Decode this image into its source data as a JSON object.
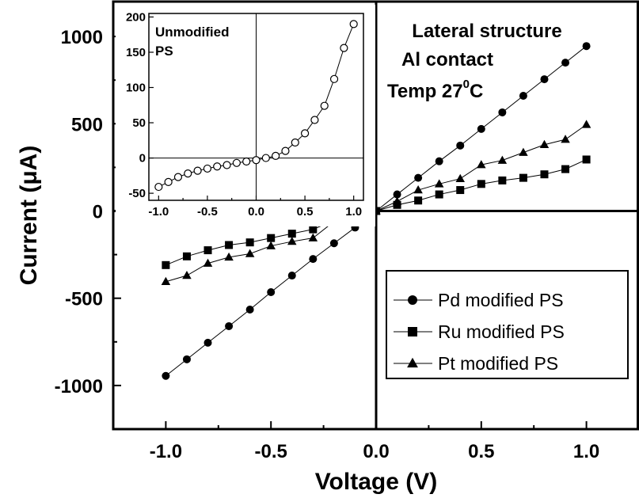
{
  "chart_data": [
    {
      "type": "line",
      "xlabel": "Voltage (V)",
      "ylabel": "Current (μA)",
      "xlim": [
        -1.25,
        1.25
      ],
      "ylim": [
        -1250,
        1200
      ],
      "x_ticks": [
        "-1.0",
        "-0.5",
        "0.0",
        "0.5",
        "1.0"
      ],
      "y_ticks": [
        "-1000",
        "-500",
        "0",
        "500",
        "1000"
      ],
      "annotations": [
        "Lateral structure",
        "Al contact",
        "Temp 27",
        "0",
        "C"
      ],
      "legend_position": "bottom-right",
      "grid": false,
      "x": [
        -1.0,
        -0.9,
        -0.8,
        -0.7,
        -0.6,
        -0.5,
        -0.4,
        -0.3,
        -0.2,
        -0.1,
        0.0,
        0.1,
        0.2,
        0.3,
        0.4,
        0.5,
        0.6,
        0.7,
        0.8,
        0.9,
        1.0
      ],
      "series": [
        {
          "name": "Pd modified PS",
          "marker": "circle",
          "values": [
            -945,
            -850,
            -755,
            -660,
            -565,
            -465,
            -370,
            -275,
            -185,
            -95,
            0,
            95,
            190,
            285,
            375,
            470,
            565,
            660,
            755,
            850,
            945
          ]
        },
        {
          "name": "Ru modified PS",
          "marker": "square",
          "values": [
            -310,
            -260,
            -225,
            -195,
            -180,
            -155,
            -130,
            -105,
            -55,
            -30,
            0,
            35,
            60,
            95,
            120,
            155,
            175,
            190,
            210,
            240,
            295
          ]
        },
        {
          "name": "Pt modified PS",
          "marker": "triangle",
          "values": [
            -405,
            -370,
            -300,
            -265,
            -245,
            -200,
            -175,
            -155,
            -60,
            -40,
            0,
            55,
            120,
            155,
            185,
            265,
            290,
            335,
            380,
            410,
            495
          ]
        }
      ]
    },
    {
      "type": "line",
      "title": "Unmodified PS",
      "xlim": [
        -1.1,
        1.1
      ],
      "ylim": [
        -60,
        205
      ],
      "x_ticks": [
        "-1.0",
        "-0.5",
        "0.0",
        "0.5",
        "1.0"
      ],
      "y_ticks": [
        "200",
        "150",
        "100",
        "50",
        "0",
        "-50"
      ],
      "grid": false,
      "x": [
        -1.0,
        -0.9,
        -0.8,
        -0.7,
        -0.6,
        -0.5,
        -0.4,
        -0.3,
        -0.2,
        -0.1,
        0.0,
        0.1,
        0.2,
        0.3,
        0.4,
        0.5,
        0.6,
        0.7,
        0.8,
        0.9,
        1.0
      ],
      "series": [
        {
          "marker": "open-circle",
          "values": [
            -41,
            -34,
            -27,
            -22,
            -18,
            -15,
            -12,
            -10,
            -7,
            -5,
            -3,
            0,
            3,
            10,
            22,
            35,
            54,
            74,
            112,
            156,
            190
          ]
        }
      ]
    }
  ]
}
